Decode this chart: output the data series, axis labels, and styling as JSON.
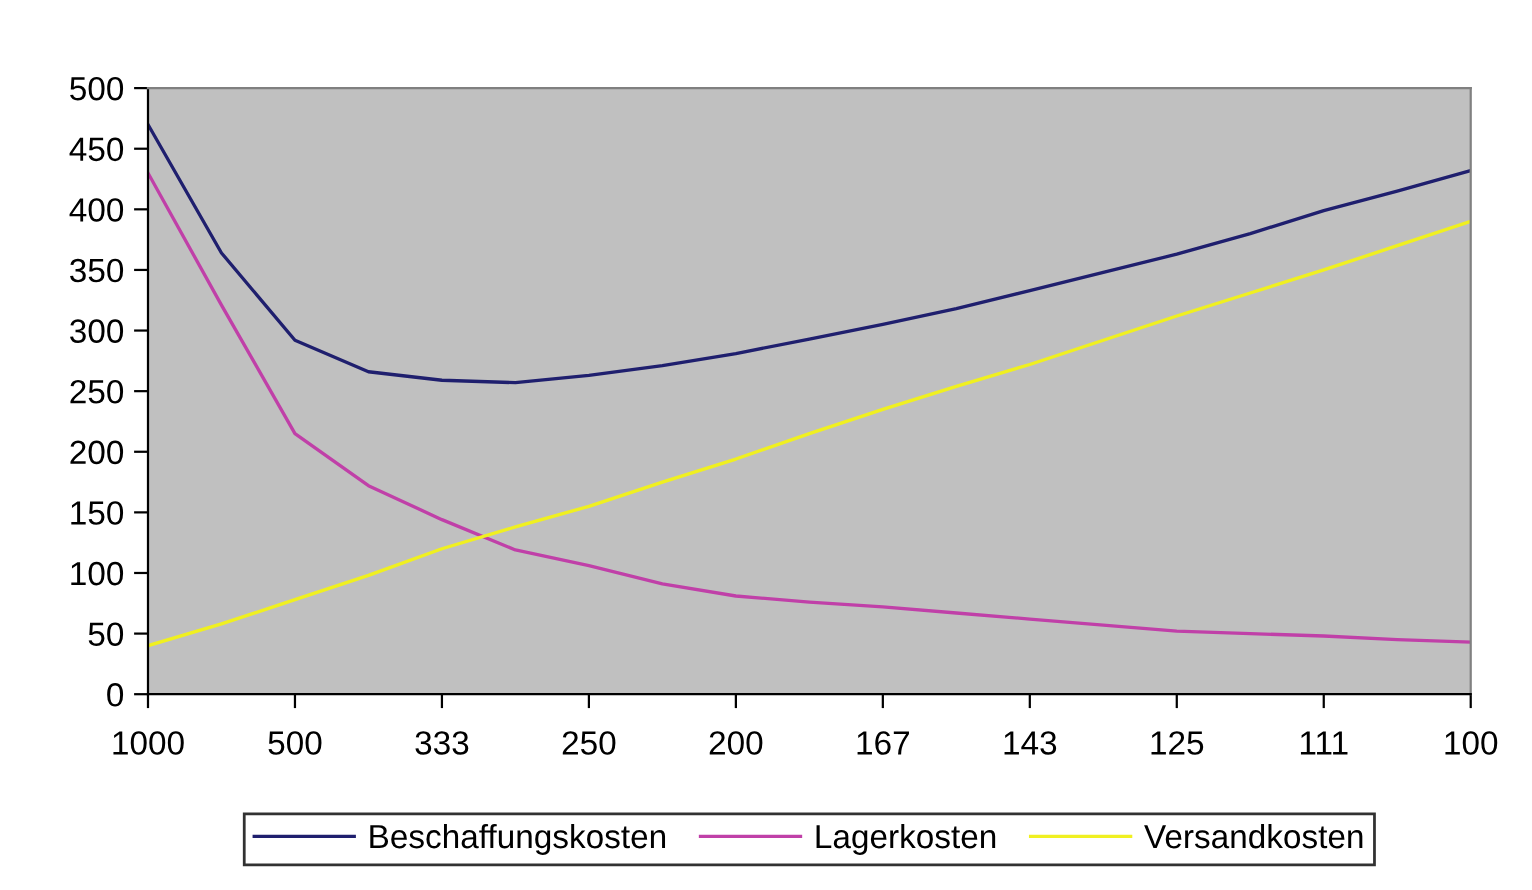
{
  "chart_data": {
    "type": "line",
    "categories": [
      "1000",
      null,
      "500",
      null,
      "333",
      null,
      "250",
      null,
      "200",
      null,
      "167",
      null,
      "143",
      null,
      "125",
      null,
      "111",
      null,
      "100"
    ],
    "series": [
      {
        "name": "Beschaffungskosten",
        "color": "#1f1f6e",
        "values": [
          470,
          364,
          292,
          266,
          259,
          257,
          263,
          271,
          281,
          293,
          305,
          318,
          333,
          348,
          363,
          380,
          399,
          415,
          432
        ]
      },
      {
        "name": "Lagerkosten",
        "color": "#c040a8",
        "values": [
          430,
          321,
          215,
          172,
          144,
          119,
          106,
          91,
          81,
          76,
          72,
          67,
          62,
          57,
          52,
          50,
          48,
          45,
          43
        ]
      },
      {
        "name": "Versandkosten",
        "color": "#f0f020",
        "values": [
          40,
          58,
          78,
          98,
          120,
          138,
          155,
          175,
          194,
          215,
          235,
          254,
          272,
          292,
          312,
          331,
          350,
          370,
          390
        ]
      }
    ],
    "ylim": [
      0,
      500
    ],
    "yticks": [
      0,
      50,
      100,
      150,
      200,
      250,
      300,
      350,
      400,
      450,
      500
    ],
    "grid": false,
    "legend": "bottom",
    "marker": "none",
    "line_style": "solid"
  }
}
